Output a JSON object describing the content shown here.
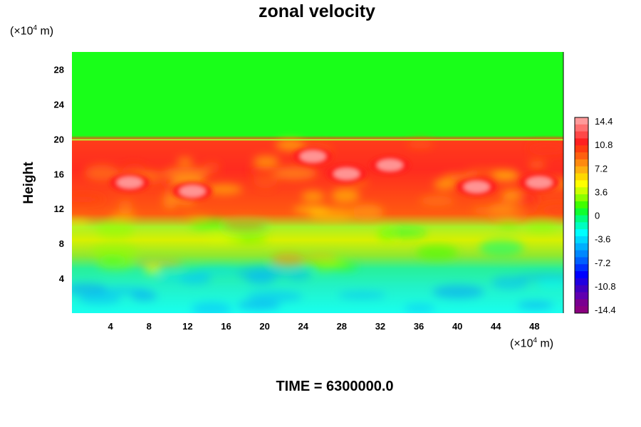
{
  "chart_data": {
    "type": "heatmap",
    "title": "zonal velocity",
    "ylabel": "Height",
    "y_unit_prefix": "(×10",
    "y_unit_exp": "4",
    "y_unit_suffix": " m)",
    "x_unit_prefix": "(×10",
    "x_unit_exp": "4",
    "x_unit_suffix": " m)",
    "xlim": [
      0,
      51
    ],
    "ylim": [
      0,
      30
    ],
    "x_ticks": [
      "4",
      "8",
      "12",
      "16",
      "20",
      "24",
      "28",
      "32",
      "36",
      "40",
      "44",
      "48"
    ],
    "y_ticks": [
      "4",
      "8",
      "12",
      "16",
      "20",
      "24",
      "28"
    ],
    "colorbar": {
      "range": [
        -14.4,
        14.4
      ],
      "labels": [
        "14.4",
        "10.8",
        "7.2",
        "3.6",
        "0",
        "-3.6",
        "-7.2",
        "-10.8",
        "-14.4"
      ]
    },
    "regions": [
      {
        "y_range": [
          20,
          30
        ],
        "value": 0.4
      },
      {
        "y_range": [
          11,
          20
        ],
        "value": 10.5
      },
      {
        "y_range": [
          5.5,
          11
        ],
        "value": 4.0
      },
      {
        "y_range": [
          0,
          5.5
        ],
        "value": -3.4
      }
    ],
    "maxima": [
      {
        "x": 6,
        "y": 15,
        "value": 14.4
      },
      {
        "x": 12.5,
        "y": 14,
        "value": 14.4
      },
      {
        "x": 25,
        "y": 18,
        "value": 14.4
      },
      {
        "x": 28.5,
        "y": 16,
        "value": 14.4
      },
      {
        "x": 33,
        "y": 17,
        "value": 14.4
      },
      {
        "x": 42,
        "y": 14.5,
        "value": 14.4
      },
      {
        "x": 48.5,
        "y": 15,
        "value": 14.4
      }
    ]
  },
  "footer": {
    "time_text": "TIME = 6300000.0"
  }
}
